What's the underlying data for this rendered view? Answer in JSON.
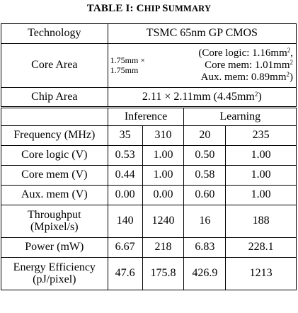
{
  "caption": {
    "main": "TABLE I: C",
    "sc1": "HIP ",
    "s2": "S",
    "sc2": "UMMARY"
  },
  "rows": {
    "technology": {
      "label": "Technology",
      "value": "TSMC 65nm GP CMOS"
    },
    "core_area": {
      "label": "Core Area",
      "dim_line1": "1.75mm ×",
      "dim_line2": "1.75mm",
      "logic": "(Core logic: 1.16mm",
      "mem": "Core mem: 1.01mm",
      "aux": "Aux. mem: 0.89mm",
      "sup": "2",
      "close": ")"
    },
    "chip_area": {
      "label": "Chip Area",
      "value_a": "2.11 × 2.11mm (4.45mm",
      "sup": "2",
      "value_b": ")"
    },
    "groups": {
      "inference": "Inference",
      "learning": "Learning"
    },
    "data": [
      {
        "label": "Frequency (MHz)",
        "values": [
          "35",
          "310",
          "20",
          "235"
        ]
      },
      {
        "label": "Core logic (V)",
        "values": [
          "0.53",
          "1.00",
          "0.50",
          "1.00"
        ]
      },
      {
        "label": "Core mem (V)",
        "values": [
          "0.44",
          "1.00",
          "0.58",
          "1.00"
        ]
      },
      {
        "label": "Aux. mem (V)",
        "values": [
          "0.00",
          "0.00",
          "0.60",
          "1.00"
        ]
      },
      {
        "label": "Throughput",
        "label2": "(Mpixel/s)",
        "values": [
          "140",
          "1240",
          "16",
          "188"
        ]
      },
      {
        "label": "Power (mW)",
        "values": [
          "6.67",
          "218",
          "6.83",
          "228.1"
        ]
      },
      {
        "label": "Energy Efficiency",
        "label2": "(pJ/pixel)",
        "values": [
          "47.6",
          "175.8",
          "426.9",
          "1213"
        ]
      }
    ]
  }
}
